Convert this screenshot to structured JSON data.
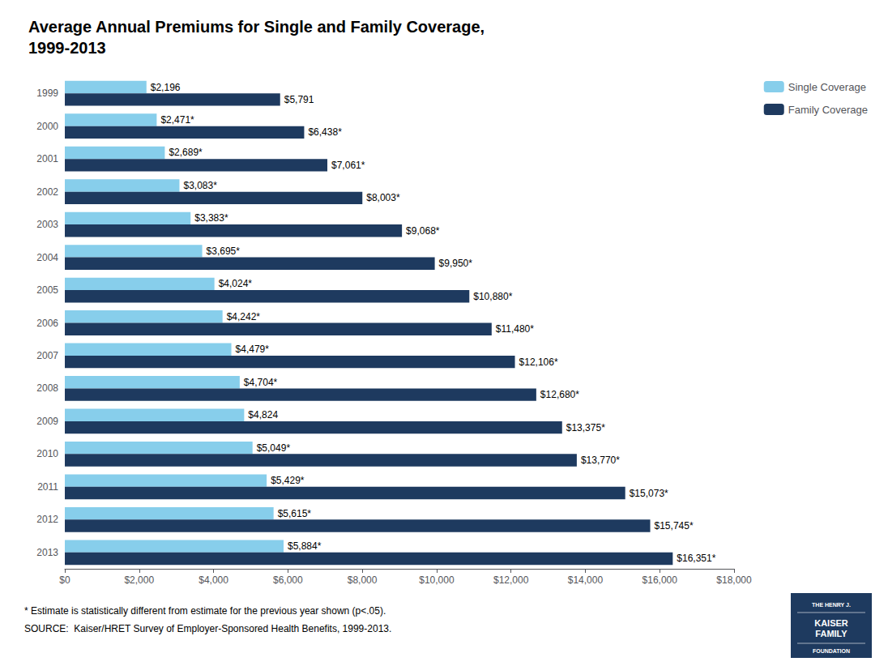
{
  "chart_data": {
    "type": "bar",
    "orientation": "horizontal",
    "title": "Average Annual Premiums for Single and Family Coverage,\n1999-2013",
    "categories": [
      "1999",
      "2000",
      "2001",
      "2002",
      "2003",
      "2004",
      "2005",
      "2006",
      "2007",
      "2008",
      "2009",
      "2010",
      "2011",
      "2012",
      "2013"
    ],
    "series": [
      {
        "name": "Single Coverage",
        "color": "#87CEEB",
        "values": [
          2196,
          2471,
          2689,
          3083,
          3383,
          3695,
          4024,
          4242,
          4479,
          4704,
          4824,
          5049,
          5429,
          5615,
          5884
        ],
        "value_labels": [
          "$2,196",
          "$2,471*",
          "$2,689*",
          "$3,083*",
          "$3,383*",
          "$3,695*",
          "$4,024*",
          "$4,242*",
          "$4,479*",
          "$4,704*",
          "$4,824",
          "$5,049*",
          "$5,429*",
          "$5,615*",
          "$5,884*"
        ]
      },
      {
        "name": "Family Coverage",
        "color": "#1e3a5f",
        "values": [
          5791,
          6438,
          7061,
          8003,
          9068,
          9950,
          10880,
          11480,
          12106,
          12680,
          13375,
          13770,
          15073,
          15745,
          16351
        ],
        "value_labels": [
          "$5,791",
          "$6,438*",
          "$7,061*",
          "$8,003*",
          "$9,068*",
          "$9,950*",
          "$10,880*",
          "$11,480*",
          "$12,106*",
          "$12,680*",
          "$13,375*",
          "$13,770*",
          "$15,073*",
          "$15,745*",
          "$16,351*"
        ]
      }
    ],
    "xlim": [
      0,
      18000
    ],
    "xticks": [
      {
        "value": 0,
        "label": "$0"
      },
      {
        "value": 2000,
        "label": "$2,000"
      },
      {
        "value": 4000,
        "label": "$4,000"
      },
      {
        "value": 6000,
        "label": "$6,000"
      },
      {
        "value": 8000,
        "label": "$8,000"
      },
      {
        "value": 10000,
        "label": "$10,000"
      },
      {
        "value": 12000,
        "label": "$12,000"
      },
      {
        "value": 14000,
        "label": "$14,000"
      },
      {
        "value": 16000,
        "label": "$16,000"
      },
      {
        "value": 18000,
        "label": "$18,000"
      }
    ],
    "annotations": [
      "* Estimate is statistically different from estimate for the previous year shown (p<.05).",
      "SOURCE:  Kaiser/HRET Survey of Employer-Sponsored Health Benefits, 1999-2013.",
      "THE HENRY J.",
      "KAISER\nFAMILY",
      "FOUNDATION"
    ],
    "data_labels": true,
    "legend": "upper right",
    "grid": false
  }
}
